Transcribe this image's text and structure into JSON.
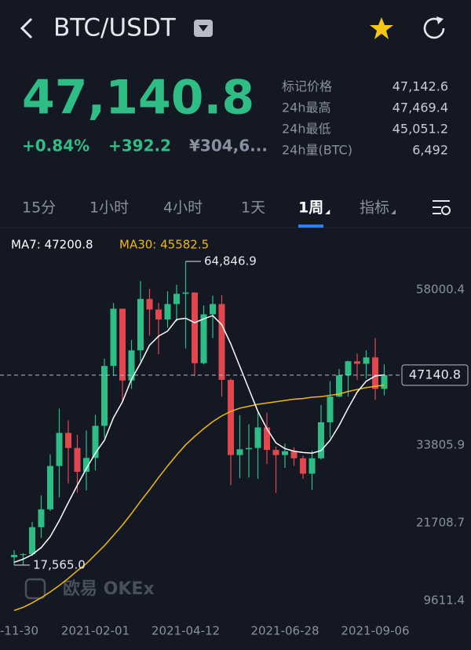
{
  "header": {
    "title": "BTC/USDT"
  },
  "price": "47,140.8",
  "change_pct": "+0.84%",
  "change": "+392.2",
  "cny": "¥304,6...",
  "stats": [
    {
      "label": "标记价格",
      "value": "47,142.6"
    },
    {
      "label": "24h最高",
      "value": "47,469.4"
    },
    {
      "label": "24h最低",
      "value": "45,051.2"
    },
    {
      "label": "24h量(BTC)",
      "value": "6,492"
    }
  ],
  "tabs": [
    "15分",
    "1小时",
    "4小时",
    "1天",
    "1周",
    "指标"
  ],
  "watermark": "欧易 OKEx",
  "chart": {
    "type": "candlestick",
    "legend": [
      "MA7: 47200.8",
      "MA30: 45582.5"
    ],
    "annotations": [
      "64,846.9",
      "17,565.0"
    ],
    "current_price": 47140.8,
    "up_color": "#2ebd85",
    "down_color": "#e0474f",
    "ma7_color": "#ffffff",
    "ma30_color": "#f0b90b",
    "categories": [
      "-11-30",
      null,
      null,
      null,
      null,
      null,
      null,
      null,
      null,
      "2021-02-01",
      null,
      null,
      null,
      null,
      null,
      null,
      null,
      null,
      null,
      "2021-04-12",
      null,
      null,
      null,
      null,
      null,
      null,
      null,
      null,
      null,
      null,
      "2021-06-28",
      null,
      null,
      null,
      null,
      null,
      null,
      null,
      null,
      null,
      "2021-09-06",
      null
    ],
    "open": [
      18800,
      19150,
      19270,
      23480,
      26250,
      33000,
      38150,
      35800,
      32100,
      34250,
      39250,
      48570,
      57480,
      46300,
      51000,
      59000,
      57350,
      55800,
      58200,
      59800,
      60000,
      49000,
      56600,
      58200,
      46400,
      34700,
      35600,
      35800,
      39000,
      35500,
      34700,
      35300,
      34200,
      31800,
      34200,
      39800,
      43800,
      47100,
      49300,
      48900,
      49900,
      45000
    ],
    "high": [
      19900,
      19420,
      24295,
      28400,
      34800,
      41950,
      40100,
      37850,
      38530,
      40950,
      49700,
      58350,
      57500,
      52600,
      61790,
      60600,
      58400,
      60200,
      61200,
      64846.9,
      60000,
      58000,
      59500,
      59600,
      46600,
      40900,
      39500,
      41300,
      41300,
      36000,
      36500,
      35900,
      34600,
      35400,
      42500,
      46200,
      48100,
      49400,
      50500,
      51000,
      52900,
      48800
    ],
    "low": [
      17565,
      17650,
      19000,
      21800,
      26000,
      28130,
      30300,
      28850,
      29200,
      32300,
      37400,
      47000,
      43000,
      45000,
      49300,
      53300,
      50400,
      54500,
      55500,
      51300,
      47000,
      48800,
      52900,
      43800,
      30000,
      31100,
      31200,
      31000,
      33300,
      28800,
      32700,
      33000,
      31000,
      29300,
      34000,
      37400,
      43700,
      43800,
      46400,
      46600,
      43300,
      44000
    ],
    "close": [
      19150,
      19270,
      23480,
      26250,
      33000,
      38150,
      35800,
      32100,
      34250,
      39250,
      48570,
      57480,
      46300,
      51000,
      59000,
      57350,
      55800,
      58200,
      59800,
      60000,
      49000,
      56600,
      58200,
      46400,
      34700,
      35600,
      35800,
      39000,
      35500,
      34700,
      35300,
      34200,
      31800,
      34200,
      39800,
      43800,
      47100,
      49300,
      48900,
      49900,
      45000,
      47140.8
    ],
    "ma7": [
      18000,
      18500,
      19200,
      20300,
      22000,
      24500,
      27300,
      30000,
      32600,
      35000,
      37000,
      40500,
      43000,
      46500,
      49000,
      51800,
      53200,
      54000,
      55800,
      56000,
      55300,
      55900,
      56400,
      55000,
      52000,
      48500,
      45000,
      41500,
      38800,
      36600,
      35700,
      35300,
      35100,
      35000,
      35400,
      37000,
      39300,
      42000,
      44500,
      46200,
      47000,
      47200.8
    ],
    "ma30": [
      10500,
      11000,
      11700,
      12500,
      13400,
      14400,
      15500,
      16700,
      17800,
      19200,
      20600,
      22200,
      23800,
      25600,
      27500,
      29300,
      31200,
      33000,
      34700,
      36300,
      37600,
      38800,
      39900,
      40800,
      41500,
      42000,
      42300,
      42600,
      42800,
      43000,
      43200,
      43400,
      43500,
      43700,
      43800,
      44000,
      44200,
      44600,
      44900,
      45200,
      45400,
      45582.5
    ],
    "ylim": [
      9611.4,
      68873
    ],
    "yticks": [
      9611.4,
      21708.7,
      33805.9,
      58000.4
    ]
  }
}
